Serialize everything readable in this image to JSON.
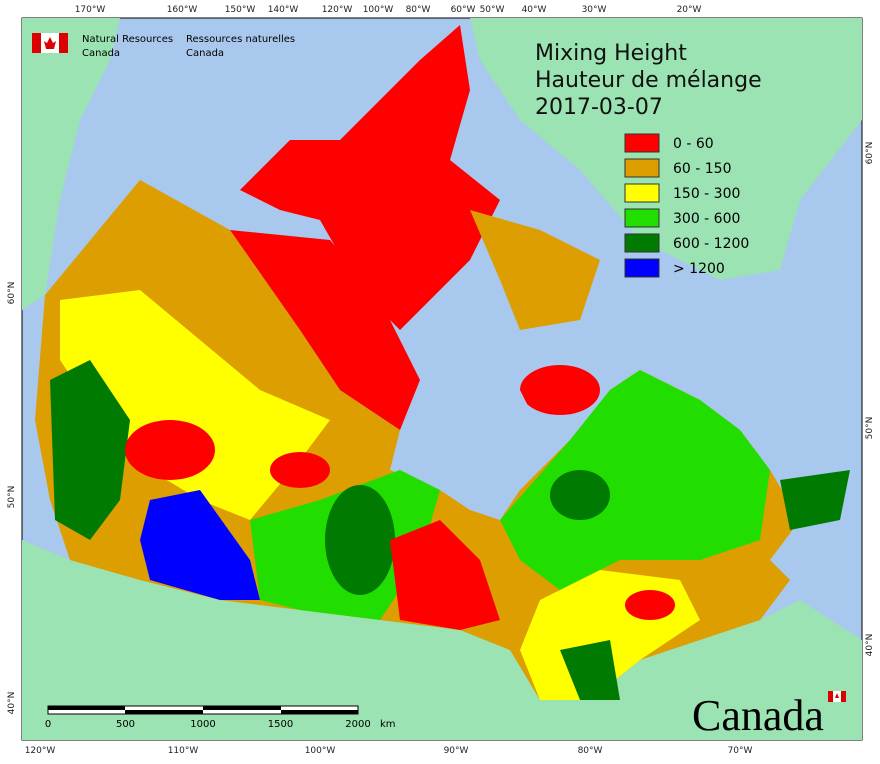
{
  "header": {
    "org_en": [
      "Natural Resources",
      "Canada"
    ],
    "org_fr": [
      "Ressources naturelles",
      "Canada"
    ]
  },
  "title": [
    "Mixing Height",
    "Hauteur de mélange",
    "2017-03-07"
  ],
  "legend": [
    {
      "label": "0 - 60",
      "color": "#ff0000"
    },
    {
      "label": "60 - 150",
      "color": "#dc9e00"
    },
    {
      "label": "150 - 300",
      "color": "#ffff00"
    },
    {
      "label": "300 - 600",
      "color": "#22dd00"
    },
    {
      "label": "600 - 1200",
      "color": "#007a00"
    },
    {
      "label": "> 1200",
      "color": "#0000ff"
    }
  ],
  "graticule": {
    "top": [
      "170°W",
      "160°W",
      "150°W",
      "140°W",
      "120°W",
      "100°W",
      "80°W",
      "60°W",
      "50°W",
      "40°W",
      "30°W",
      "20°W"
    ],
    "bottom": [
      "120°W",
      "110°W",
      "100°W",
      "90°W",
      "80°W",
      "70°W"
    ],
    "left": [
      "60°N",
      "50°N",
      "40°N"
    ],
    "right": [
      "60°N",
      "50°N",
      "40°N"
    ]
  },
  "scale_bar": {
    "labels": [
      0,
      500,
      1000,
      1500,
      2000
    ],
    "unit": "km"
  },
  "wordmark": "Canada"
}
